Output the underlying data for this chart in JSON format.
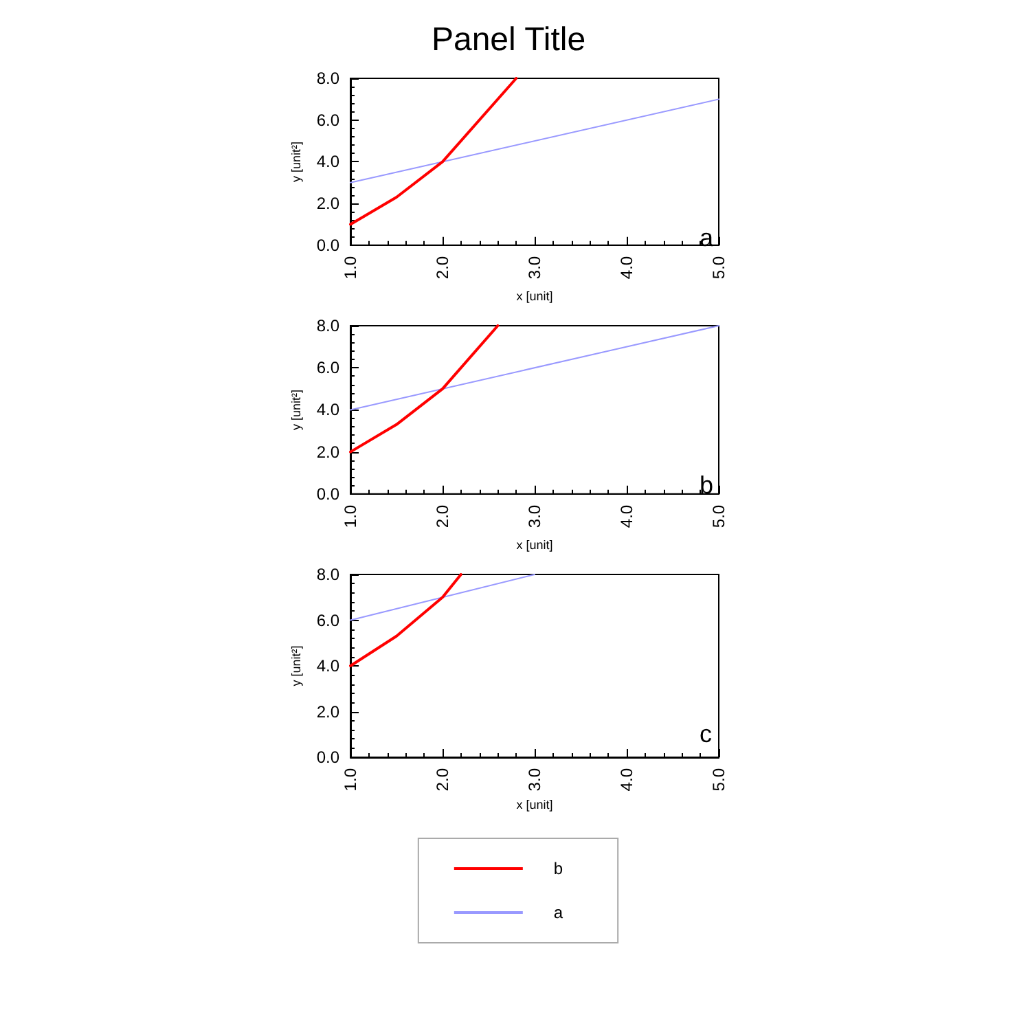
{
  "chart_data": [
    {
      "type": "line",
      "title": "Panel Title",
      "xlabel": "x [unit]",
      "ylabel": "y [unit²]",
      "annotations": [
        "a"
      ],
      "xlim": [
        1,
        5
      ],
      "xticks": [
        {
          "value": 1,
          "label": "1.0"
        },
        {
          "value": 2,
          "label": "2.0"
        },
        {
          "value": 3,
          "label": "3.0"
        },
        {
          "value": 4,
          "label": "4.0"
        },
        {
          "value": 5,
          "label": "5.0"
        }
      ],
      "ylim": [
        0,
        8
      ],
      "yticks": [
        {
          "value": 0,
          "label": "0.0"
        },
        {
          "value": 2,
          "label": "2.0"
        },
        {
          "value": 4,
          "label": "4.0"
        },
        {
          "value": 6,
          "label": "6.0"
        },
        {
          "value": 8,
          "label": "8.0"
        }
      ],
      "grid": false,
      "legend": false,
      "marker": "none",
      "series": [
        {
          "color": "#ff0000",
          "x": [
            1,
            1.5,
            2,
            2.8
          ],
          "values": [
            1,
            2.3,
            4,
            8
          ]
        },
        {
          "color": "#9999ff",
          "x": [
            1,
            5
          ],
          "values": [
            3,
            7
          ]
        }
      ]
    },
    {
      "type": "line",
      "xlabel": "x [unit]",
      "ylabel": "y [unit²]",
      "annotations": [
        "b"
      ],
      "xlim": [
        1,
        5
      ],
      "xticks": [
        {
          "value": 1,
          "label": "1.0"
        },
        {
          "value": 2,
          "label": "2.0"
        },
        {
          "value": 3,
          "label": "3.0"
        },
        {
          "value": 4,
          "label": "4.0"
        },
        {
          "value": 5,
          "label": "5.0"
        }
      ],
      "ylim": [
        0,
        8
      ],
      "yticks": [
        {
          "value": 0,
          "label": "0.0"
        },
        {
          "value": 2,
          "label": "2.0"
        },
        {
          "value": 4,
          "label": "4.0"
        },
        {
          "value": 6,
          "label": "6.0"
        },
        {
          "value": 8,
          "label": "8.0"
        }
      ],
      "grid": false,
      "legend": false,
      "marker": "none",
      "series": [
        {
          "color": "#ff0000",
          "x": [
            1,
            1.5,
            2,
            2.6
          ],
          "values": [
            2,
            3.3,
            5,
            8
          ]
        },
        {
          "color": "#9999ff",
          "x": [
            1,
            5
          ],
          "values": [
            4,
            8
          ]
        }
      ]
    },
    {
      "type": "line",
      "xlabel": "x [unit]",
      "ylabel": "y [unit²]",
      "annotations": [
        "c"
      ],
      "xlim": [
        1,
        5
      ],
      "xticks": [
        {
          "value": 1,
          "label": "1.0"
        },
        {
          "value": 2,
          "label": "2.0"
        },
        {
          "value": 3,
          "label": "3.0"
        },
        {
          "value": 4,
          "label": "4.0"
        },
        {
          "value": 5,
          "label": "5.0"
        }
      ],
      "ylim": [
        0,
        8
      ],
      "yticks": [
        {
          "value": 0,
          "label": "0.0"
        },
        {
          "value": 2,
          "label": "2.0"
        },
        {
          "value": 4,
          "label": "4.0"
        },
        {
          "value": 6,
          "label": "6.0"
        },
        {
          "value": 8,
          "label": "8.0"
        }
      ],
      "grid": false,
      "legend": "bottom",
      "marker": "none",
      "series": [
        {
          "name": "b",
          "color": "#ff0000",
          "x": [
            1,
            1.5,
            2,
            2.2
          ],
          "values": [
            4,
            5.3,
            7,
            8
          ]
        },
        {
          "name": "a",
          "color": "#9999ff",
          "x": [
            1,
            3
          ],
          "values": [
            6,
            8
          ]
        }
      ]
    }
  ]
}
